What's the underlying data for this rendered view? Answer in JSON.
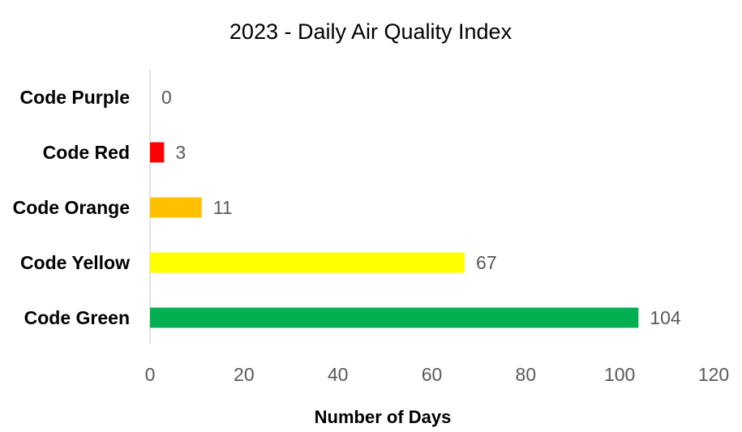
{
  "chart_data": {
    "type": "bar",
    "orientation": "horizontal",
    "title": "2023 - Daily Air Quality Index",
    "xlabel": "Number of Days",
    "ylabel": "",
    "xlim": [
      0,
      120
    ],
    "x_ticks": [
      "0",
      "20",
      "40",
      "60",
      "80",
      "100",
      "120"
    ],
    "categories": [
      "Code Purple",
      "Code Red",
      "Code Orange",
      "Code Yellow",
      "Code Green"
    ],
    "values": [
      0,
      3,
      11,
      67,
      104
    ],
    "data_labels": [
      "0",
      "3",
      "11",
      "67",
      "104"
    ],
    "colors": [
      "#7030A0",
      "#FF0000",
      "#FFC000",
      "#FFFF00",
      "#00B050"
    ],
    "grid": false,
    "legend": "none"
  }
}
